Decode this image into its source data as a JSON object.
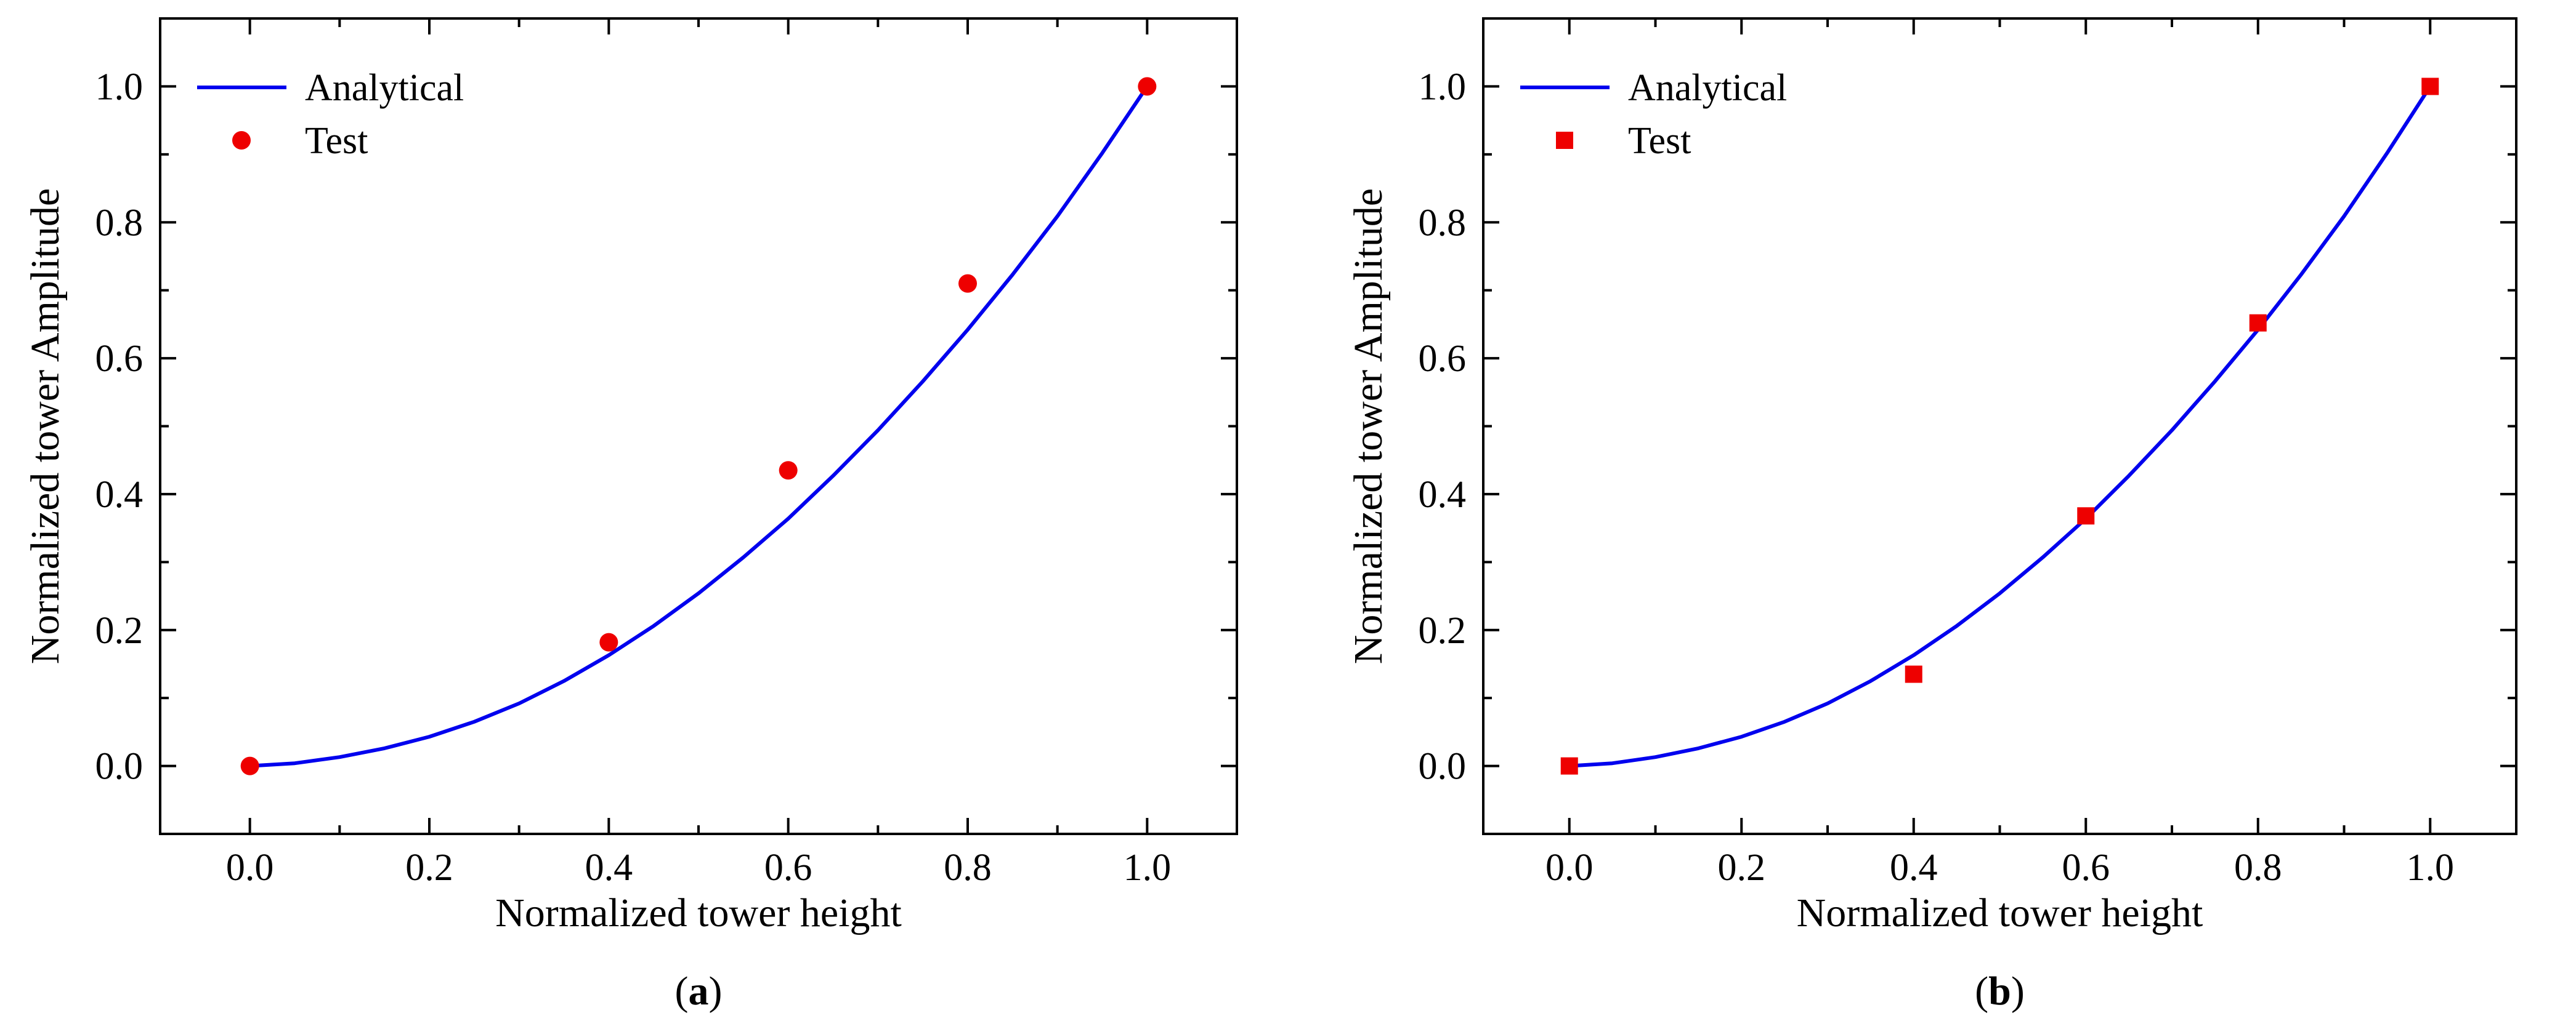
{
  "chart_data": [
    {
      "type": "line",
      "panel_label": "(a)",
      "panel_letter": "a",
      "xlabel": "Normalized tower height",
      "ylabel": "Normalized tower Amplitude",
      "xlim": [
        -0.1,
        1.1
      ],
      "ylim": [
        -0.1,
        1.1
      ],
      "xticks": [
        0.0,
        0.2,
        0.4,
        0.6,
        0.8,
        1.0
      ],
      "xtick_labels": [
        "0.0",
        "0.2",
        "0.4",
        "0.6",
        "0.8",
        "1.0"
      ],
      "yticks": [
        0.0,
        0.2,
        0.4,
        0.6,
        0.8,
        1.0
      ],
      "ytick_labels": [
        "0.0",
        "0.2",
        "0.4",
        "0.6",
        "0.8",
        "1.0"
      ],
      "legend_position": "top-left",
      "series": [
        {
          "name": "Analytical",
          "kind": "line",
          "color": "#0000ee",
          "x": [
            0.0,
            0.05,
            0.1,
            0.15,
            0.2,
            0.25,
            0.3,
            0.35,
            0.4,
            0.45,
            0.5,
            0.55,
            0.6,
            0.65,
            0.7,
            0.75,
            0.8,
            0.85,
            0.9,
            0.95,
            1.0
          ],
          "y": [
            0.0,
            0.004,
            0.013,
            0.026,
            0.043,
            0.065,
            0.092,
            0.125,
            0.163,
            0.206,
            0.254,
            0.307,
            0.364,
            0.427,
            0.494,
            0.566,
            0.642,
            0.723,
            0.809,
            0.902,
            1.0
          ]
        },
        {
          "name": "Test",
          "kind": "scatter",
          "marker": "circle",
          "color": "#ee0000",
          "x": [
            0.0,
            0.4,
            0.6,
            0.8,
            1.0
          ],
          "y": [
            0.0,
            0.182,
            0.435,
            0.71,
            1.0
          ]
        }
      ]
    },
    {
      "type": "line",
      "panel_label": "(b)",
      "panel_letter": "b",
      "xlabel": "Normalized tower height",
      "ylabel": "Normalized tower Amplitude",
      "xlim": [
        -0.1,
        1.1
      ],
      "ylim": [
        -0.1,
        1.1
      ],
      "xticks": [
        0.0,
        0.2,
        0.4,
        0.6,
        0.8,
        1.0
      ],
      "xtick_labels": [
        "0.0",
        "0.2",
        "0.4",
        "0.6",
        "0.8",
        "1.0"
      ],
      "yticks": [
        0.0,
        0.2,
        0.4,
        0.6,
        0.8,
        1.0
      ],
      "ytick_labels": [
        "0.0",
        "0.2",
        "0.4",
        "0.6",
        "0.8",
        "1.0"
      ],
      "legend_position": "top-left",
      "series": [
        {
          "name": "Analytical",
          "kind": "line",
          "color": "#0000ee",
          "x": [
            0.0,
            0.05,
            0.1,
            0.15,
            0.2,
            0.25,
            0.3,
            0.35,
            0.4,
            0.45,
            0.5,
            0.55,
            0.6,
            0.65,
            0.7,
            0.75,
            0.8,
            0.85,
            0.9,
            0.95,
            1.0
          ],
          "y": [
            0.0,
            0.004,
            0.013,
            0.026,
            0.043,
            0.065,
            0.092,
            0.125,
            0.163,
            0.206,
            0.254,
            0.307,
            0.364,
            0.427,
            0.494,
            0.566,
            0.642,
            0.723,
            0.809,
            0.902,
            1.0
          ]
        },
        {
          "name": "Test",
          "kind": "scatter",
          "marker": "square",
          "color": "#ee0000",
          "x": [
            0.0,
            0.4,
            0.6,
            0.8,
            1.0
          ],
          "y": [
            0.0,
            0.135,
            0.368,
            0.652,
            1.0
          ]
        }
      ]
    }
  ]
}
